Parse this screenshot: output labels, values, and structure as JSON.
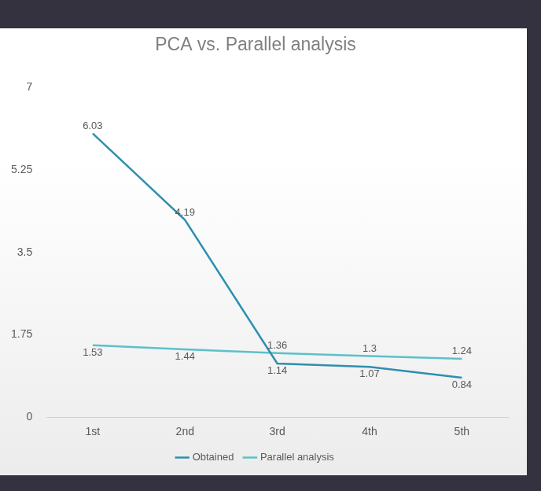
{
  "chart_data": {
    "type": "line",
    "title": "PCA vs. Parallel analysis",
    "categories": [
      "1st",
      "2nd",
      "3rd",
      "4th",
      "5th"
    ],
    "series": [
      {
        "name": "Obtained",
        "color": "#2e8fae",
        "values": [
          6.03,
          4.19,
          1.14,
          1.07,
          0.84
        ]
      },
      {
        "name": "Parallel analysis",
        "color": "#5cc0ca",
        "values": [
          1.53,
          1.44,
          1.36,
          1.3,
          1.24
        ]
      }
    ],
    "ylim": [
      0,
      7
    ],
    "yticks": [
      0,
      1.75,
      3.5,
      5.25,
      7
    ],
    "grid": false,
    "legend": "bottom",
    "data_labels": true
  }
}
